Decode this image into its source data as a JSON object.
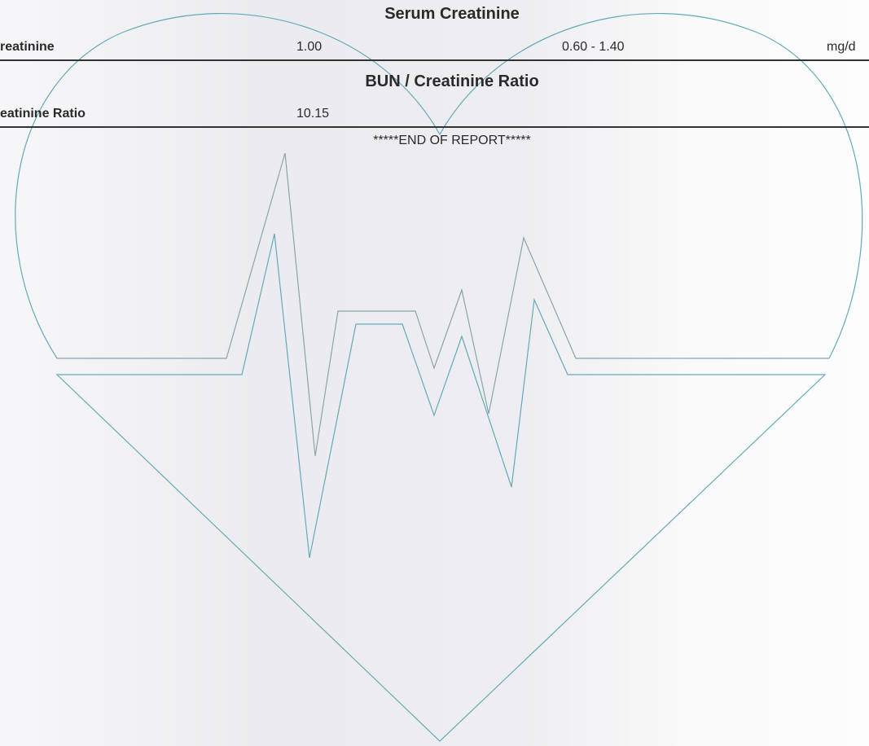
{
  "sections": [
    {
      "title": "Serum Creatinine",
      "rows": [
        [
          "reatinine",
          "1.00",
          "0.60 - 1.40",
          "mg/d"
        ]
      ]
    },
    {
      "title": "BUN / Creatinine Ratio",
      "rows": [
        [
          "eatinine Ratio",
          "10.15"
        ]
      ]
    }
  ],
  "footer": "*****END OF REPORT*****"
}
